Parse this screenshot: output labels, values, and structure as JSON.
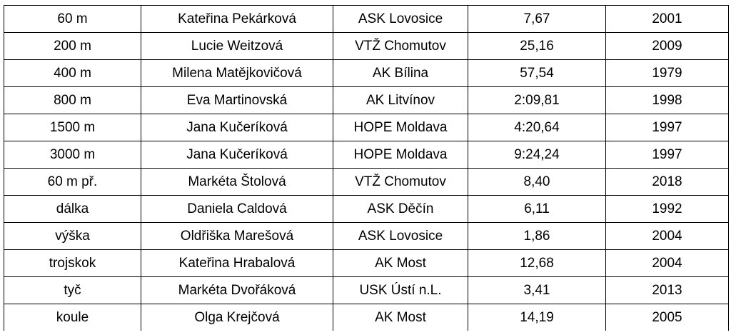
{
  "table": {
    "rows": [
      {
        "discipline": "60 m",
        "athlete": "Kateřina Pekárková",
        "club": "ASK Lovosice",
        "result": "7,67",
        "year": "2001"
      },
      {
        "discipline": "200 m",
        "athlete": "Lucie Weitzová",
        "club": "VTŽ Chomutov",
        "result": "25,16",
        "year": "2009"
      },
      {
        "discipline": "400 m",
        "athlete": "Milena Matějkovičová",
        "club": "AK Bílina",
        "result": "57,54",
        "year": "1979"
      },
      {
        "discipline": "800 m",
        "athlete": "Eva Martinovská",
        "club": "AK Litvínov",
        "result": "2:09,81",
        "year": "1998"
      },
      {
        "discipline": "1500 m",
        "athlete": "Jana Kučeríková",
        "club": "HOPE Moldava",
        "result": "4:20,64",
        "year": "1997"
      },
      {
        "discipline": "3000 m",
        "athlete": "Jana Kučeríková",
        "club": "HOPE Moldava",
        "result": "9:24,24",
        "year": "1997"
      },
      {
        "discipline": "60 m př.",
        "athlete": "Markéta Štolová",
        "club": "VTŽ Chomutov",
        "result": "8,40",
        "year": "2018"
      },
      {
        "discipline": "dálka",
        "athlete": "Daniela Caldová",
        "club": "ASK Děčín",
        "result": "6,11",
        "year": "1992"
      },
      {
        "discipline": "výška",
        "athlete": "Oldřiška Marešová",
        "club": "ASK Lovosice",
        "result": "1,86",
        "year": "2004"
      },
      {
        "discipline": "trojskok",
        "athlete": "Kateřina Hrabalová",
        "club": "AK Most",
        "result": "12,68",
        "year": "2004"
      },
      {
        "discipline": "tyč",
        "athlete": "Markéta Dvořáková",
        "club": "USK Ústí n.L.",
        "result": "3,41",
        "year": "2013"
      },
      {
        "discipline": "koule",
        "athlete": "Olga Krejčová",
        "club": "AK Most",
        "result": "14,19",
        "year": "2005"
      }
    ]
  }
}
